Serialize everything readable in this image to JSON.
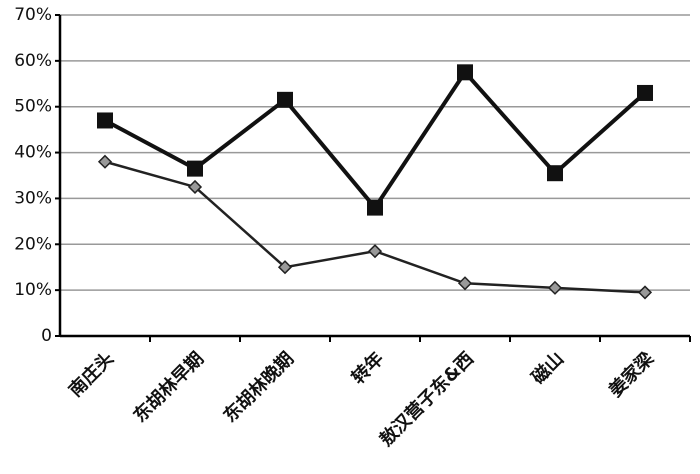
{
  "chart_data": {
    "type": "line",
    "categories": [
      "南庄头",
      "东胡林早期",
      "东胡林晚期",
      "转年",
      "敖汉营子东&西",
      "磁山",
      "姜家梁"
    ],
    "series": [
      {
        "color": "#111111",
        "marker": "square",
        "values": [
          47,
          36.5,
          51.5,
          28,
          57.5,
          35.5,
          53
        ]
      },
      {
        "color": "#222222",
        "marker": "diamond",
        "values": [
          38,
          32.5,
          15,
          18.5,
          11.5,
          10.5,
          9.5
        ]
      }
    ],
    "ylim": [
      0,
      70
    ],
    "yticks": [
      0,
      {
        "value": 10,
        "label": "10%"
      },
      {
        "value": 20,
        "label": "20%"
      },
      {
        "value": 30,
        "label": "30%"
      },
      {
        "value": 40,
        "label": "40%"
      },
      {
        "value": 50,
        "label": "50%"
      },
      {
        "value": 60,
        "label": "60%"
      },
      {
        "value": 70,
        "label": "70%"
      }
    ],
    "grid": true
  }
}
